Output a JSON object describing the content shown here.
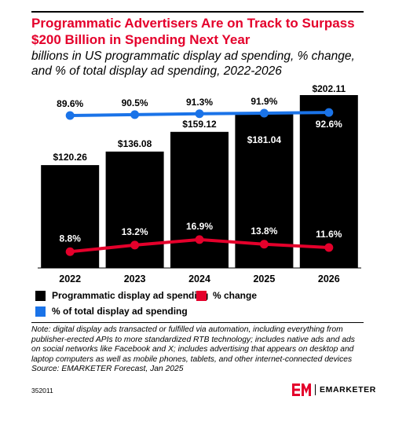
{
  "header": {
    "title": "Programmatic Advertisers Are on Track to Surpass $200 Billion in Spending Next Year",
    "subtitle": "billions in US programmatic display ad spending, % change, and % of total display ad spending, 2022-2026"
  },
  "chart_data": {
    "type": "bar",
    "categories": [
      "2022",
      "2023",
      "2024",
      "2025",
      "2026"
    ],
    "series": [
      {
        "name": "Programmatic display ad spending",
        "type": "bar",
        "values": [
          120.26,
          136.08,
          159.12,
          181.04,
          202.11
        ],
        "labels": [
          "$120.26",
          "$136.08",
          "$159.12",
          "$181.04",
          "$202.11"
        ],
        "color": "#000000"
      },
      {
        "name": "% change",
        "type": "line",
        "values": [
          8.8,
          13.2,
          16.9,
          13.8,
          11.6
        ],
        "labels": [
          "8.8%",
          "13.2%",
          "16.9%",
          "13.8%",
          "11.6%"
        ],
        "color": "#e4002b"
      },
      {
        "name": "% of total display ad spending",
        "type": "line",
        "values": [
          89.6,
          90.5,
          91.3,
          91.9,
          92.6
        ],
        "labels": [
          "89.6%",
          "90.5%",
          "91.3%",
          "91.9%",
          "92.6%"
        ],
        "color": "#1a73e8"
      }
    ],
    "ylim_spending": [
      0,
      202.11
    ],
    "ylim_pct_change": [
      0,
      30
    ],
    "ylim_pct_total": [
      0,
      100
    ],
    "grid": false,
    "legend_placement": "bottom"
  },
  "legend": {
    "items": [
      {
        "label": "Programmatic display ad spending",
        "color": "#000000"
      },
      {
        "label": "% change",
        "color": "#e4002b"
      },
      {
        "label": "% of total display ad spending",
        "color": "#1a73e8"
      }
    ]
  },
  "note": {
    "text": "Note: digital display ads transacted or fulfilled via automation, including everything from publisher-erected APIs to more standardized RTB technology; includes native ads and ads on social networks like Facebook and X; includes advertising that appears on desktop and laptop computers as well as mobile phones, tablets, and other internet-connected devices",
    "source": "Source: EMARKETER Forecast, Jan 2025"
  },
  "footer": {
    "chart_id": "352011",
    "brand": "EMARKETER"
  }
}
